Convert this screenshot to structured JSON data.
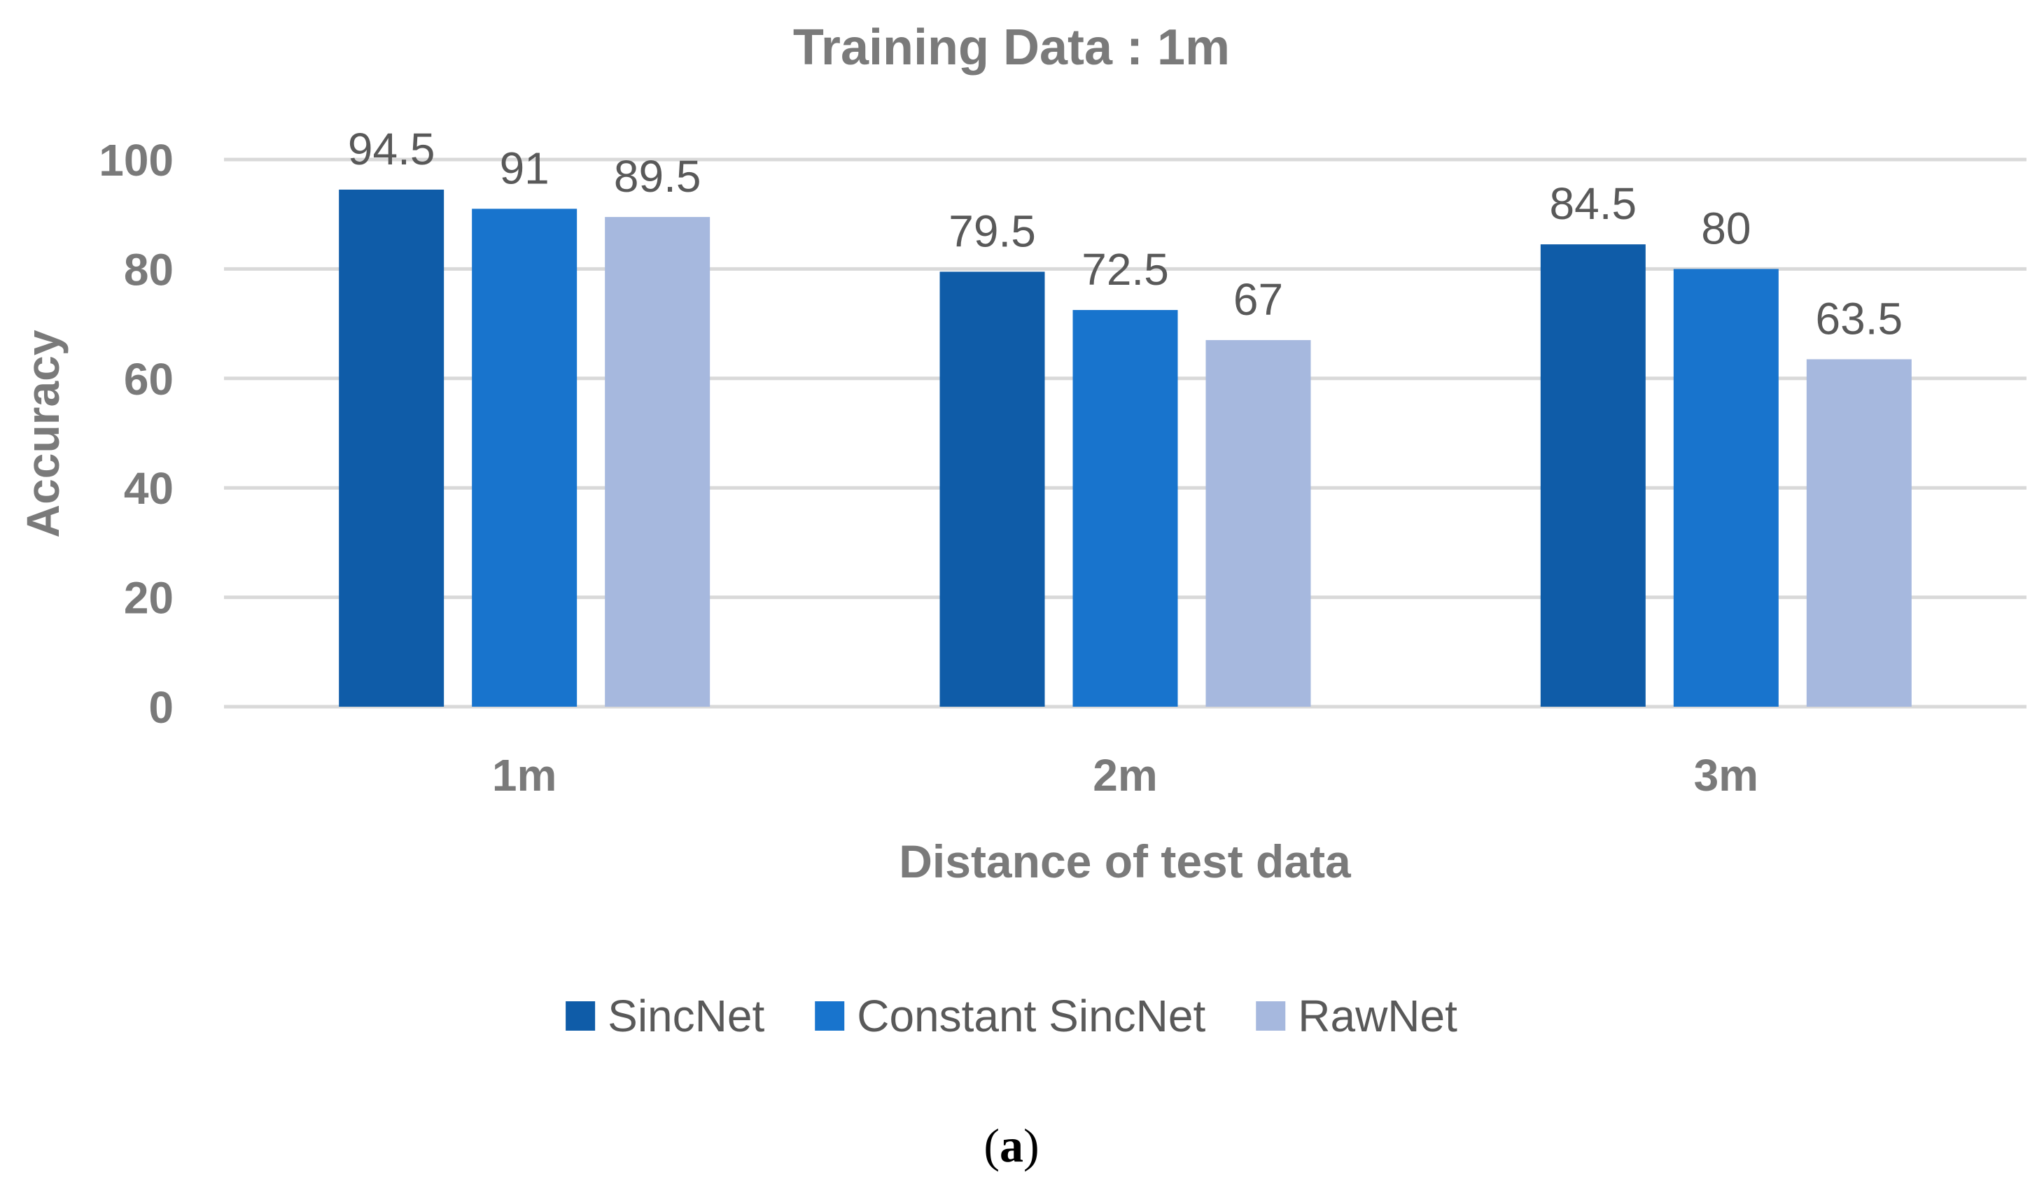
{
  "caption": {
    "open_paren": "(",
    "letter": "a",
    "close_paren": ")"
  },
  "chart_data": {
    "type": "bar",
    "title": "Training Data : 1m",
    "xlabel": "Distance of test data",
    "ylabel": "Accuracy",
    "categories": [
      "1m",
      "2m",
      "3m"
    ],
    "ylim": [
      0,
      100
    ],
    "yticks": [
      0,
      20,
      40,
      60,
      80,
      100
    ],
    "grid": true,
    "legend_position": "bottom",
    "series": [
      {
        "name": "SincNet",
        "color": "#0f5ca8",
        "values": [
          94.5,
          79.5,
          84.5
        ],
        "labels": [
          "94.5",
          "79.5",
          "84.5"
        ]
      },
      {
        "name": "Constant SincNet",
        "color": "#1874cd",
        "values": [
          91,
          72.5,
          80
        ],
        "labels": [
          "91",
          "72.5",
          "80"
        ]
      },
      {
        "name": "RawNet",
        "color": "#a6b8de",
        "values": [
          89.5,
          67,
          63.5
        ],
        "labels": [
          "89.5",
          "67",
          "63.5"
        ]
      }
    ]
  }
}
